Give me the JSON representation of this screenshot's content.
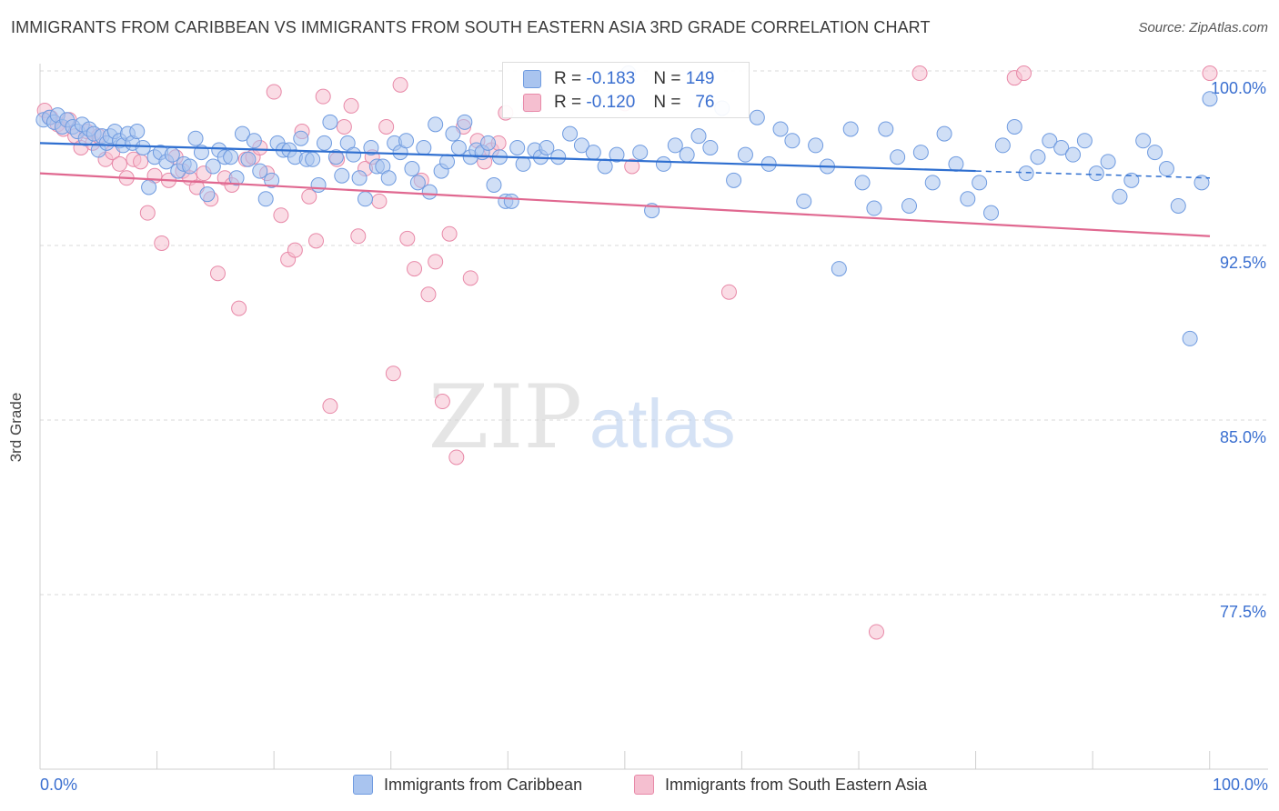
{
  "title": "IMMIGRANTS FROM CARIBBEAN VS IMMIGRANTS FROM SOUTH EASTERN ASIA 3RD GRADE CORRELATION CHART",
  "source": "Source: ZipAtlas.com",
  "watermark": {
    "zip": "ZIP",
    "atlas": "atlas"
  },
  "colors": {
    "blue": "#6f9be0",
    "blue_fill": "#a9c4ef",
    "blue_line": "#2f6fd0",
    "pink": "#e889a8",
    "pink_fill": "#f5bfd0",
    "pink_line": "#e06890",
    "axis_text": "#3a6fd0"
  },
  "legend_top": {
    "rows": [
      {
        "r_label": "R =",
        "r_value": "-0.183",
        "n_label": "N =",
        "n_value": "149"
      },
      {
        "r_label": "R =",
        "r_value": "-0.120",
        "n_label": "N =",
        "n_value": "76"
      }
    ]
  },
  "legend_bottom": [
    "Immigrants from Caribbean",
    "Immigrants from South Eastern Asia"
  ],
  "chart_data": {
    "type": "scatter",
    "title": "IMMIGRANTS FROM CARIBBEAN VS IMMIGRANTS FROM SOUTH EASTERN ASIA 3RD GRADE CORRELATION CHART",
    "xlabel": "",
    "ylabel": "3rd Grade",
    "xlim": [
      0,
      100
    ],
    "ylim": [
      70.0,
      101.0
    ],
    "x_tick_labels": [
      "0.0%",
      "100.0%"
    ],
    "y_ticks": [
      100.0,
      92.5,
      85.0,
      77.5
    ],
    "y_tick_labels": [
      "100.0%",
      "92.5%",
      "85.0%",
      "77.5%"
    ],
    "grid": true,
    "legend_position": "bottom",
    "series": [
      {
        "name": "Immigrants from Caribbean",
        "color": "#6f9be0",
        "trend": {
          "x0": 0,
          "y0": 96.9,
          "x1": 100,
          "y1": 95.4,
          "solid_until": 80
        },
        "points": [
          [
            0.3,
            97.9
          ],
          [
            0.8,
            98.0
          ],
          [
            1.2,
            97.8
          ],
          [
            1.5,
            98.1
          ],
          [
            1.9,
            97.6
          ],
          [
            2.3,
            97.9
          ],
          [
            2.8,
            97.6
          ],
          [
            3.2,
            97.4
          ],
          [
            3.6,
            97.7
          ],
          [
            3.9,
            97.1
          ],
          [
            4.2,
            97.5
          ],
          [
            4.6,
            97.3
          ],
          [
            5.0,
            96.6
          ],
          [
            5.3,
            97.2
          ],
          [
            5.7,
            96.9
          ],
          [
            6.0,
            97.2
          ],
          [
            6.4,
            97.4
          ],
          [
            6.8,
            97.0
          ],
          [
            7.1,
            96.8
          ],
          [
            7.5,
            97.3
          ],
          [
            7.9,
            96.9
          ],
          [
            8.3,
            97.4
          ],
          [
            8.8,
            96.7
          ],
          [
            9.3,
            95.0
          ],
          [
            9.8,
            96.3
          ],
          [
            10.3,
            96.5
          ],
          [
            10.8,
            96.1
          ],
          [
            11.3,
            96.4
          ],
          [
            11.8,
            95.7
          ],
          [
            12.3,
            96.0
          ],
          [
            12.8,
            95.9
          ],
          [
            13.3,
            97.1
          ],
          [
            13.8,
            96.5
          ],
          [
            14.3,
            94.7
          ],
          [
            14.8,
            95.9
          ],
          [
            15.3,
            96.6
          ],
          [
            15.8,
            96.3
          ],
          [
            16.3,
            96.3
          ],
          [
            16.8,
            95.4
          ],
          [
            17.3,
            97.3
          ],
          [
            17.8,
            96.2
          ],
          [
            18.3,
            97.0
          ],
          [
            18.8,
            95.7
          ],
          [
            19.3,
            94.5
          ],
          [
            19.8,
            95.3
          ],
          [
            20.3,
            96.9
          ],
          [
            20.8,
            96.6
          ],
          [
            21.3,
            96.6
          ],
          [
            21.8,
            96.3
          ],
          [
            22.3,
            97.1
          ],
          [
            22.8,
            96.2
          ],
          [
            23.3,
            96.2
          ],
          [
            23.8,
            95.1
          ],
          [
            24.3,
            96.9
          ],
          [
            24.8,
            97.8
          ],
          [
            25.3,
            96.3
          ],
          [
            25.8,
            95.5
          ],
          [
            26.3,
            96.9
          ],
          [
            26.8,
            96.4
          ],
          [
            27.3,
            95.4
          ],
          [
            27.8,
            94.5
          ],
          [
            28.3,
            96.7
          ],
          [
            28.8,
            95.9
          ],
          [
            29.3,
            95.9
          ],
          [
            29.8,
            95.4
          ],
          [
            30.3,
            96.9
          ],
          [
            30.8,
            96.5
          ],
          [
            31.3,
            97.0
          ],
          [
            31.8,
            95.8
          ],
          [
            32.3,
            95.2
          ],
          [
            32.8,
            96.7
          ],
          [
            33.3,
            94.8
          ],
          [
            33.8,
            97.7
          ],
          [
            34.3,
            95.7
          ],
          [
            34.8,
            96.1
          ],
          [
            35.3,
            97.3
          ],
          [
            35.8,
            96.7
          ],
          [
            36.3,
            97.8
          ],
          [
            36.8,
            96.3
          ],
          [
            37.3,
            96.6
          ],
          [
            37.8,
            96.5
          ],
          [
            38.3,
            96.9
          ],
          [
            38.8,
            95.1
          ],
          [
            39.3,
            96.3
          ],
          [
            39.8,
            94.4
          ],
          [
            40.3,
            94.4
          ],
          [
            40.8,
            96.7
          ],
          [
            41.3,
            96.0
          ],
          [
            41.8,
            98.5
          ],
          [
            42.3,
            96.6
          ],
          [
            42.8,
            96.3
          ],
          [
            43.3,
            96.7
          ],
          [
            44.3,
            96.3
          ],
          [
            45.3,
            97.3
          ],
          [
            46.3,
            96.8
          ],
          [
            47.3,
            96.5
          ],
          [
            48.3,
            95.9
          ],
          [
            49.3,
            96.4
          ],
          [
            50.3,
            99.9
          ],
          [
            51.3,
            96.5
          ],
          [
            52.3,
            94.0
          ],
          [
            53.3,
            96.0
          ],
          [
            54.3,
            96.8
          ],
          [
            55.3,
            96.4
          ],
          [
            56.3,
            97.2
          ],
          [
            57.3,
            96.7
          ],
          [
            58.3,
            98.4
          ],
          [
            59.3,
            95.3
          ],
          [
            60.3,
            96.4
          ],
          [
            61.3,
            98.0
          ],
          [
            62.3,
            96.0
          ],
          [
            63.3,
            97.5
          ],
          [
            64.3,
            97.0
          ],
          [
            65.3,
            94.4
          ],
          [
            66.3,
            96.8
          ],
          [
            67.3,
            95.9
          ],
          [
            68.3,
            91.5
          ],
          [
            69.3,
            97.5
          ],
          [
            70.3,
            95.2
          ],
          [
            71.3,
            94.1
          ],
          [
            72.3,
            97.5
          ],
          [
            73.3,
            96.3
          ],
          [
            74.3,
            94.2
          ],
          [
            75.3,
            96.5
          ],
          [
            76.3,
            95.2
          ],
          [
            77.3,
            97.3
          ],
          [
            78.3,
            96.0
          ],
          [
            79.3,
            94.5
          ],
          [
            80.3,
            95.2
          ],
          [
            81.3,
            93.9
          ],
          [
            82.3,
            96.8
          ],
          [
            83.3,
            97.6
          ],
          [
            84.3,
            95.6
          ],
          [
            85.3,
            96.3
          ],
          [
            86.3,
            97.0
          ],
          [
            87.3,
            96.7
          ],
          [
            88.3,
            96.4
          ],
          [
            89.3,
            97.0
          ],
          [
            90.3,
            95.6
          ],
          [
            91.3,
            96.1
          ],
          [
            92.3,
            94.6
          ],
          [
            93.3,
            95.3
          ],
          [
            94.3,
            97.0
          ],
          [
            95.3,
            96.5
          ],
          [
            96.3,
            95.8
          ],
          [
            97.3,
            94.2
          ],
          [
            98.3,
            88.5
          ],
          [
            99.3,
            95.2
          ],
          [
            100.0,
            98.8
          ]
        ]
      },
      {
        "name": "Immigrants from South Eastern Asia",
        "color": "#e889a8",
        "trend": {
          "x0": 0,
          "y0": 95.6,
          "x1": 100,
          "y1": 92.9,
          "solid_until": 100
        },
        "points": [
          [
            0.4,
            98.3
          ],
          [
            0.9,
            98.0
          ],
          [
            1.5,
            97.7
          ],
          [
            2.0,
            97.5
          ],
          [
            2.5,
            97.9
          ],
          [
            3.0,
            97.2
          ],
          [
            3.5,
            96.7
          ],
          [
            4.0,
            97.4
          ],
          [
            4.5,
            96.9
          ],
          [
            5.0,
            97.2
          ],
          [
            5.6,
            96.2
          ],
          [
            6.2,
            96.5
          ],
          [
            6.8,
            96.0
          ],
          [
            7.4,
            95.4
          ],
          [
            8.0,
            96.2
          ],
          [
            8.6,
            96.1
          ],
          [
            9.2,
            93.9
          ],
          [
            9.8,
            95.5
          ],
          [
            10.4,
            92.6
          ],
          [
            11.0,
            95.3
          ],
          [
            11.6,
            96.3
          ],
          [
            12.2,
            95.7
          ],
          [
            12.8,
            95.4
          ],
          [
            13.4,
            95.0
          ],
          [
            14.0,
            95.6
          ],
          [
            14.6,
            94.5
          ],
          [
            15.2,
            91.3
          ],
          [
            15.8,
            95.4
          ],
          [
            16.4,
            95.1
          ],
          [
            17.0,
            89.8
          ],
          [
            17.6,
            96.2
          ],
          [
            18.2,
            96.3
          ],
          [
            18.8,
            96.7
          ],
          [
            19.4,
            95.6
          ],
          [
            20.0,
            99.1
          ],
          [
            20.6,
            93.8
          ],
          [
            21.2,
            91.9
          ],
          [
            21.8,
            92.3
          ],
          [
            22.4,
            97.4
          ],
          [
            23.0,
            94.6
          ],
          [
            23.6,
            92.7
          ],
          [
            24.2,
            98.9
          ],
          [
            24.8,
            85.6
          ],
          [
            25.4,
            96.2
          ],
          [
            26.0,
            97.6
          ],
          [
            26.6,
            98.5
          ],
          [
            27.2,
            92.9
          ],
          [
            27.8,
            95.8
          ],
          [
            28.4,
            96.3
          ],
          [
            29.0,
            94.4
          ],
          [
            29.6,
            97.6
          ],
          [
            30.2,
            87.0
          ],
          [
            30.8,
            99.4
          ],
          [
            31.4,
            92.8
          ],
          [
            32.0,
            91.5
          ],
          [
            32.6,
            95.3
          ],
          [
            33.2,
            90.4
          ],
          [
            33.8,
            91.8
          ],
          [
            34.4,
            85.8
          ],
          [
            35.0,
            93.0
          ],
          [
            35.6,
            83.4
          ],
          [
            36.2,
            97.6
          ],
          [
            36.8,
            91.1
          ],
          [
            37.4,
            97.0
          ],
          [
            38.0,
            96.1
          ],
          [
            38.6,
            96.6
          ],
          [
            39.2,
            96.9
          ],
          [
            39.8,
            98.2
          ],
          [
            50.0,
            98.6
          ],
          [
            50.6,
            95.9
          ],
          [
            58.9,
            90.5
          ],
          [
            75.2,
            99.9
          ],
          [
            71.5,
            75.9
          ],
          [
            83.3,
            99.7
          ],
          [
            84.1,
            99.9
          ],
          [
            100.0,
            99.9
          ]
        ]
      }
    ]
  }
}
